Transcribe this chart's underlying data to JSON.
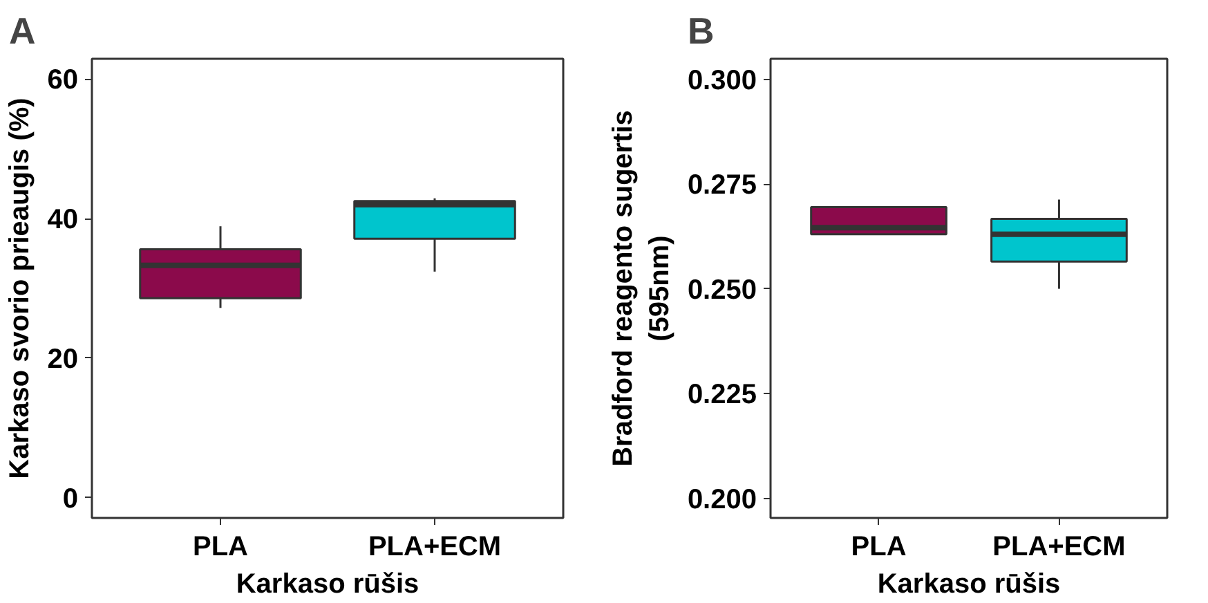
{
  "chart_data": [
    {
      "type": "box",
      "title": "A",
      "xlabel": "Karkaso rūšis",
      "ylabel": "Karkaso svorio prieaugis (%)",
      "categories": [
        "PLA",
        "PLA+ECM"
      ],
      "colors": [
        "#8b0a4b",
        "#00c5cd"
      ],
      "boxes": [
        {
          "low": 27.2,
          "q1": 28.6,
          "median": 33.3,
          "q3": 35.6,
          "high": 38.9
        },
        {
          "low": 32.4,
          "q1": 37.1,
          "median": 42.0,
          "q3": 42.5,
          "high": 42.9
        }
      ],
      "ylim": [
        -2.9,
        62.9
      ],
      "yticks": [
        0,
        20,
        40,
        60
      ],
      "grid": false
    },
    {
      "type": "box",
      "title": "B",
      "xlabel": "Karkaso rūšis",
      "ylabel": "Bradford reagento sugertis\n(595nm)",
      "categories": [
        "PLA",
        "PLA+ECM"
      ],
      "colors": [
        "#8b0a4b",
        "#00c5cd"
      ],
      "boxes": [
        {
          "low": 0.263,
          "q1": 0.263,
          "median": 0.2646,
          "q3": 0.2695,
          "high": 0.2695
        },
        {
          "low": 0.25,
          "q1": 0.2565,
          "median": 0.263,
          "q3": 0.2667,
          "high": 0.2713
        }
      ],
      "ylim": [
        0.1953,
        0.3049
      ],
      "yticks": [
        {
          "value": 0.2,
          "label": "0.200"
        },
        {
          "value": 0.225,
          "label": "0.225"
        },
        {
          "value": 0.25,
          "label": "0.250"
        },
        {
          "value": 0.275,
          "label": "0.275"
        },
        {
          "value": 0.3,
          "label": "0.300"
        }
      ],
      "grid": false
    }
  ]
}
